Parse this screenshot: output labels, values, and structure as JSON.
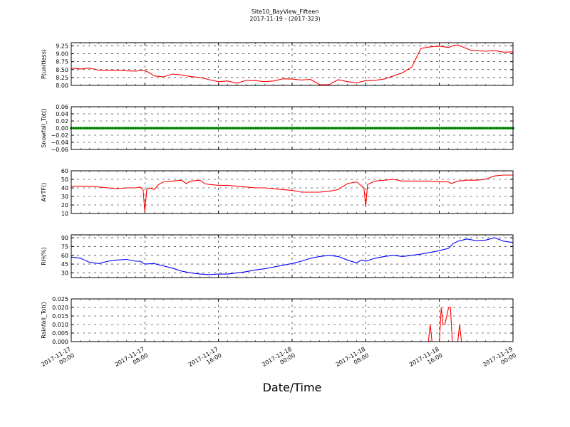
{
  "figure": {
    "title_line1": "Site10_BayView_Fifteen",
    "title_line2": "2017-11-19 - (2017-323)",
    "xlabel": "Date/Time"
  },
  "chart_data": [
    {
      "type": "line",
      "ylabel": "P(unitless)",
      "color": "#ff0000",
      "ylim": [
        8.0,
        9.35
      ],
      "yticks": [
        8.0,
        8.25,
        8.5,
        8.75,
        9.0,
        9.25
      ],
      "ytick_labels": [
        "8.00",
        "8.25",
        "8.50",
        "8.75",
        "9.00",
        "9.25"
      ],
      "x_hours": [
        0,
        1,
        2,
        3,
        4,
        5,
        6,
        7,
        7.5,
        8,
        8.5,
        9,
        10,
        11,
        12,
        13,
        14,
        15,
        16,
        17,
        18,
        19,
        20,
        21,
        22,
        23,
        24,
        25,
        26,
        27,
        28,
        29,
        30,
        31,
        32,
        33,
        34,
        35,
        36,
        37,
        38,
        39,
        40,
        41,
        41.5,
        42,
        42.5,
        43,
        43.5,
        44,
        45,
        46,
        47,
        48
      ],
      "values": [
        8.55,
        8.52,
        8.55,
        8.48,
        8.47,
        8.48,
        8.46,
        8.45,
        8.47,
        8.47,
        8.4,
        8.3,
        8.27,
        8.36,
        8.33,
        8.28,
        8.25,
        8.18,
        8.12,
        8.14,
        8.07,
        8.16,
        8.15,
        8.12,
        8.14,
        8.21,
        8.2,
        8.17,
        8.19,
        8.02,
        8.02,
        8.18,
        8.12,
        8.08,
        8.15,
        8.16,
        8.2,
        8.3,
        8.4,
        8.58,
        9.17,
        9.22,
        9.24,
        9.2,
        9.26,
        9.28,
        9.22,
        9.16,
        9.1,
        9.1,
        9.08,
        9.1,
        9.05,
        9.06
      ]
    },
    {
      "type": "line",
      "ylabel": "Snowfall_Tot()",
      "color": "#008000",
      "marker": "dot",
      "ylim": [
        -0.06,
        0.06
      ],
      "yticks": [
        -0.06,
        -0.04,
        -0.02,
        0.0,
        0.02,
        0.04,
        0.06
      ],
      "ytick_labels": [
        "−0.06",
        "−0.04",
        "−0.02",
        "0.00",
        "0.02",
        "0.04",
        "0.06"
      ],
      "x_hours": [
        0,
        48
      ],
      "values": [
        0.0,
        0.0
      ]
    },
    {
      "type": "line",
      "ylabel": "AirTF()",
      "color": "#ff0000",
      "ylim": [
        10,
        60
      ],
      "yticks": [
        10,
        20,
        30,
        40,
        50,
        60
      ],
      "ytick_labels": [
        "10",
        "20",
        "30",
        "40",
        "50",
        "60"
      ],
      "x_hours": [
        0,
        2,
        4,
        5,
        6,
        7,
        7.5,
        7.8,
        8,
        8.2,
        8.5,
        9,
        9.5,
        10,
        11,
        12,
        12.5,
        13,
        14,
        14.5,
        15,
        16,
        17,
        18,
        19,
        20,
        21,
        22,
        23,
        24,
        25,
        26,
        27,
        28,
        29,
        30,
        31,
        31.8,
        32,
        32.2,
        33,
        34,
        35,
        36,
        37,
        38,
        39,
        40,
        41,
        41.3,
        42,
        43,
        44,
        45,
        46,
        47,
        48
      ],
      "values": [
        42,
        42,
        40,
        39,
        40,
        40,
        41,
        38,
        12,
        38,
        40,
        38,
        44,
        47,
        48,
        49,
        45,
        48,
        49,
        45,
        44,
        43,
        43,
        42,
        41,
        40,
        40,
        39,
        38,
        37,
        35,
        35,
        35,
        36,
        38,
        45,
        47,
        40,
        18,
        44,
        48,
        49,
        50,
        48,
        48,
        48,
        48,
        47,
        47,
        45,
        48,
        49,
        49,
        50,
        54,
        55,
        55
      ]
    },
    {
      "type": "line",
      "ylabel": "RH(%)",
      "color": "#0000ff",
      "ylim": [
        22,
        95
      ],
      "yticks": [
        30,
        45,
        60,
        75,
        90
      ],
      "ytick_labels": [
        "30",
        "45",
        "60",
        "75",
        "90"
      ],
      "x_hours": [
        0,
        1,
        2,
        3,
        4,
        5,
        6,
        7,
        7.5,
        8,
        9,
        10,
        11,
        12,
        13,
        14,
        15,
        16,
        17,
        18,
        19,
        20,
        21,
        22,
        23,
        24,
        25,
        26,
        27,
        28,
        29,
        30,
        31,
        31.5,
        32,
        33,
        34,
        35,
        36,
        37,
        38,
        39,
        40,
        41,
        41.5,
        42,
        43,
        44,
        45,
        46,
        47,
        48
      ],
      "values": [
        57,
        55,
        48,
        46,
        50,
        52,
        53,
        50,
        50,
        45,
        46,
        42,
        38,
        33,
        30,
        28,
        27,
        28,
        28,
        30,
        32,
        35,
        37,
        40,
        43,
        46,
        50,
        55,
        58,
        60,
        58,
        52,
        47,
        52,
        50,
        55,
        58,
        60,
        58,
        60,
        62,
        65,
        68,
        72,
        80,
        84,
        88,
        85,
        86,
        90,
        84,
        82
      ]
    },
    {
      "type": "line",
      "ylabel": "Rainfall_Tot()",
      "color": "#ff0000",
      "ylim": [
        0.0,
        0.025
      ],
      "yticks": [
        0.0,
        0.005,
        0.01,
        0.015,
        0.02,
        0.025
      ],
      "ytick_labels": [
        "0.000",
        "0.005",
        "0.010",
        "0.015",
        "0.020",
        "0.025"
      ],
      "x_hours": [
        0,
        38.8,
        39,
        39.2,
        40,
        40.2,
        40.4,
        40.6,
        41,
        41.2,
        41.4,
        41.6,
        42,
        42.2,
        42.4,
        48
      ],
      "values": [
        0,
        0,
        0.01,
        0,
        0,
        0.02,
        0.01,
        0.01,
        0.02,
        0.02,
        0,
        0,
        0,
        0.01,
        0,
        0
      ]
    }
  ],
  "x_axis": {
    "range_hours": [
      0,
      48
    ],
    "ticks_hours": [
      0,
      8,
      16,
      24,
      32,
      40,
      48
    ],
    "tick_labels": [
      [
        "2017-11-17",
        "00:00"
      ],
      [
        "2017-11-17",
        "08:00"
      ],
      [
        "2017-11-17",
        "16:00"
      ],
      [
        "2017-11-18",
        "00:00"
      ],
      [
        "2017-11-18",
        "08:00"
      ],
      [
        "2017-11-18",
        "16:00"
      ],
      [
        "2017-11-19",
        "00:00"
      ]
    ]
  }
}
